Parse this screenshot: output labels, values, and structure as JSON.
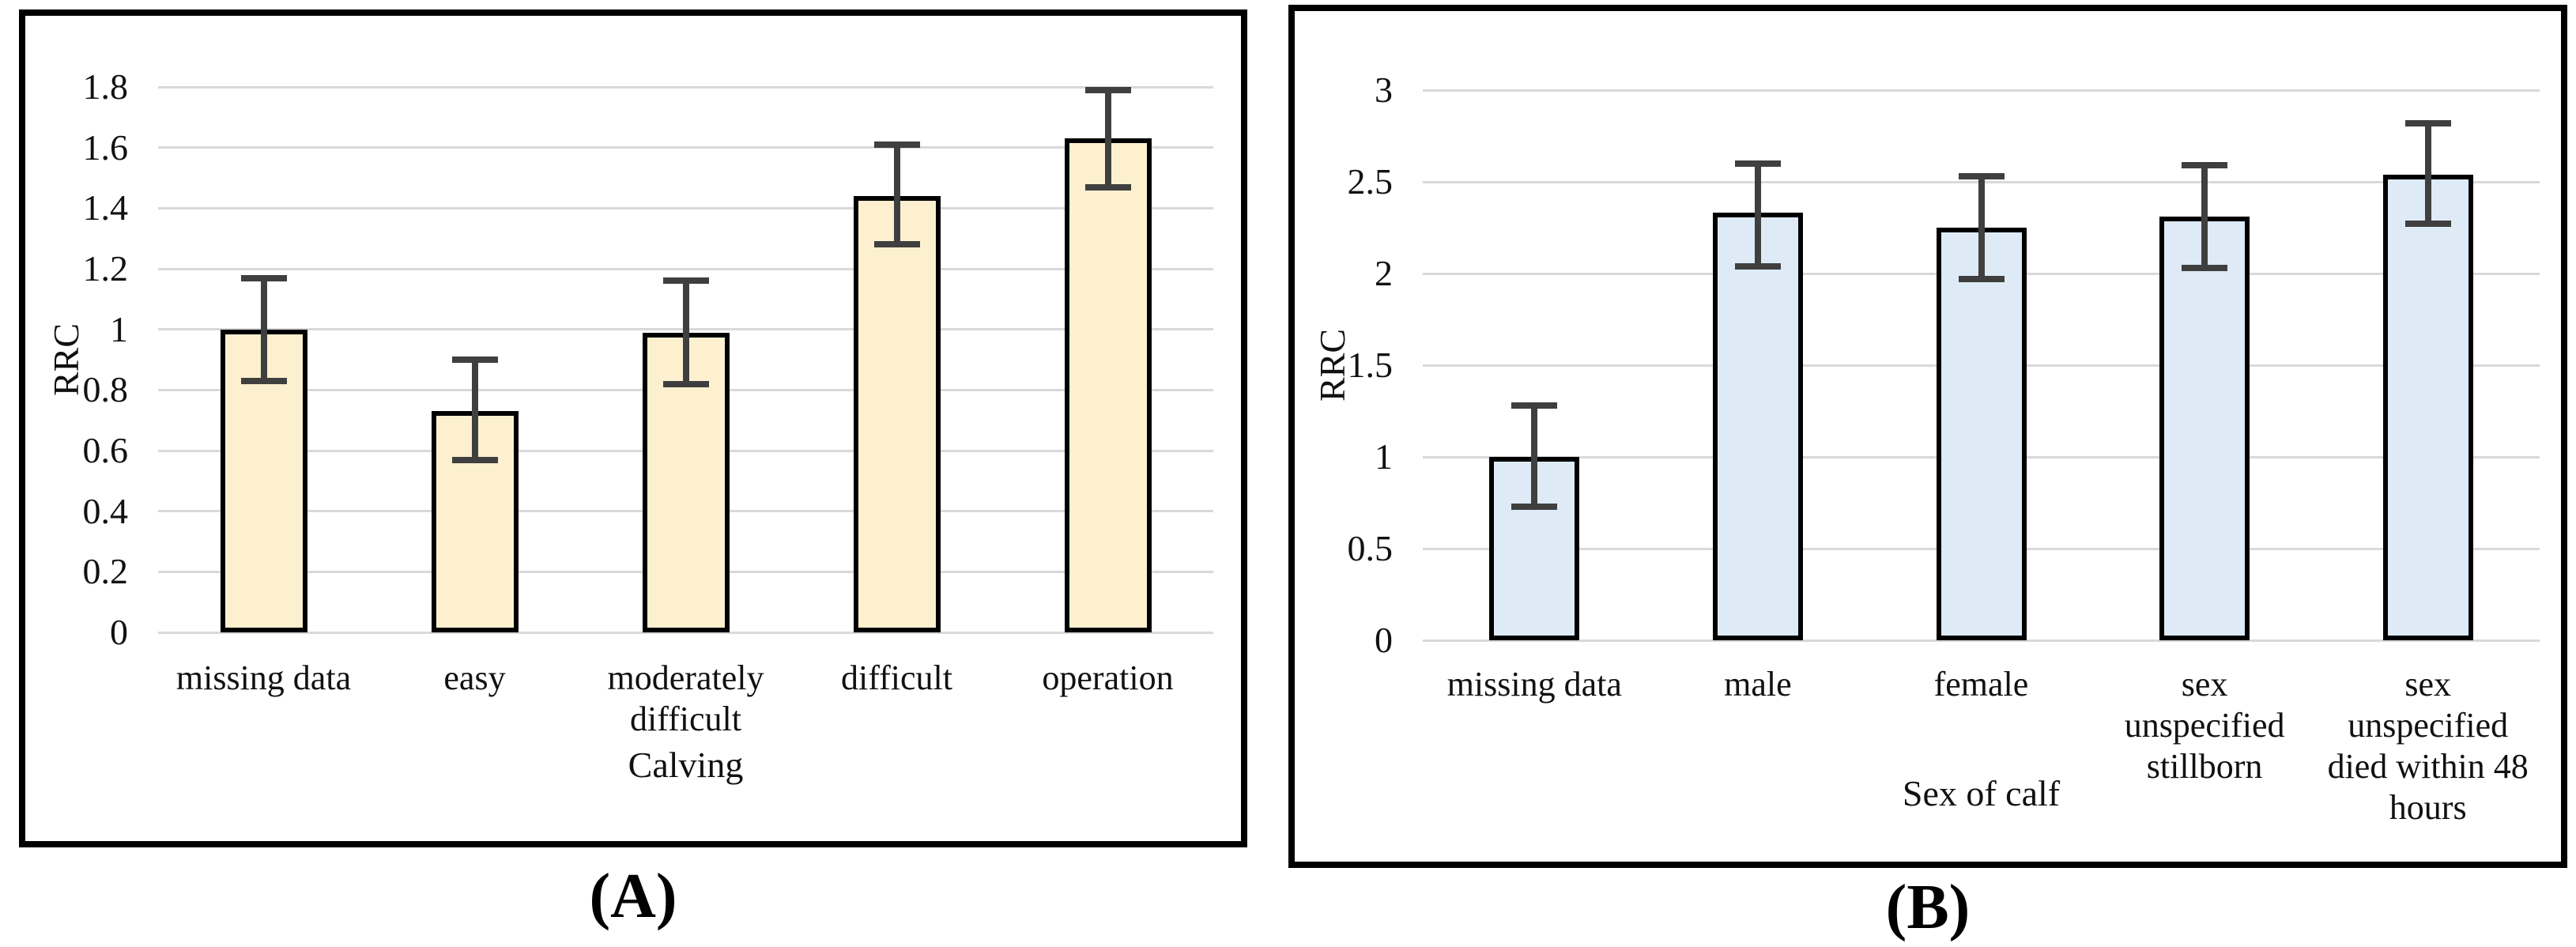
{
  "figure": {
    "captions": [
      {
        "text": "(A)"
      },
      {
        "text": "(B)"
      }
    ]
  },
  "chart_data": [
    {
      "type": "bar",
      "panel": "A",
      "title": "",
      "xlabel": "Calving",
      "ylabel": "RRC",
      "ylim": [
        0,
        1.8
      ],
      "ytick_step": 0.2,
      "ytick_labels": [
        "1.8",
        "1.6",
        "1.4",
        "1.2",
        "1",
        "0.8",
        "0.6",
        "0.4",
        "0.2",
        "0"
      ],
      "grid": true,
      "legend_position": "none",
      "bar_color": "#fcf0cf",
      "bar_border_color": "#000000",
      "error_bar_color": "#3f3f3f",
      "categories": [
        "missing data",
        "easy",
        "moderately\ndifficult",
        "difficult",
        "operation"
      ],
      "values": [
        1.0,
        0.73,
        0.99,
        1.44,
        1.63
      ],
      "error_low": [
        0.83,
        0.57,
        0.82,
        1.28,
        1.47
      ],
      "error_high": [
        1.17,
        0.9,
        1.16,
        1.61,
        1.79
      ]
    },
    {
      "type": "bar",
      "panel": "B",
      "title": "",
      "xlabel": "Sex of calf",
      "ylabel": "RRC",
      "ylim": [
        0,
        3
      ],
      "ytick_step": 0.5,
      "ytick_labels": [
        "3",
        "2.5",
        "2",
        "1.5",
        "1",
        "0.5",
        "0"
      ],
      "grid": true,
      "legend_position": "none",
      "bar_color": "#deebf6",
      "bar_border_color": "#000000",
      "error_bar_color": "#3f3f3f",
      "categories": [
        "missing data",
        "male",
        "female",
        "sex\nunspecified\nstillborn",
        "sex\nunspecified\ndied within 48\nhours"
      ],
      "values": [
        1.0,
        2.33,
        2.25,
        2.31,
        2.54
      ],
      "error_low": [
        0.73,
        2.04,
        1.97,
        2.03,
        2.27
      ],
      "error_high": [
        1.28,
        2.6,
        2.53,
        2.59,
        2.82
      ]
    }
  ]
}
